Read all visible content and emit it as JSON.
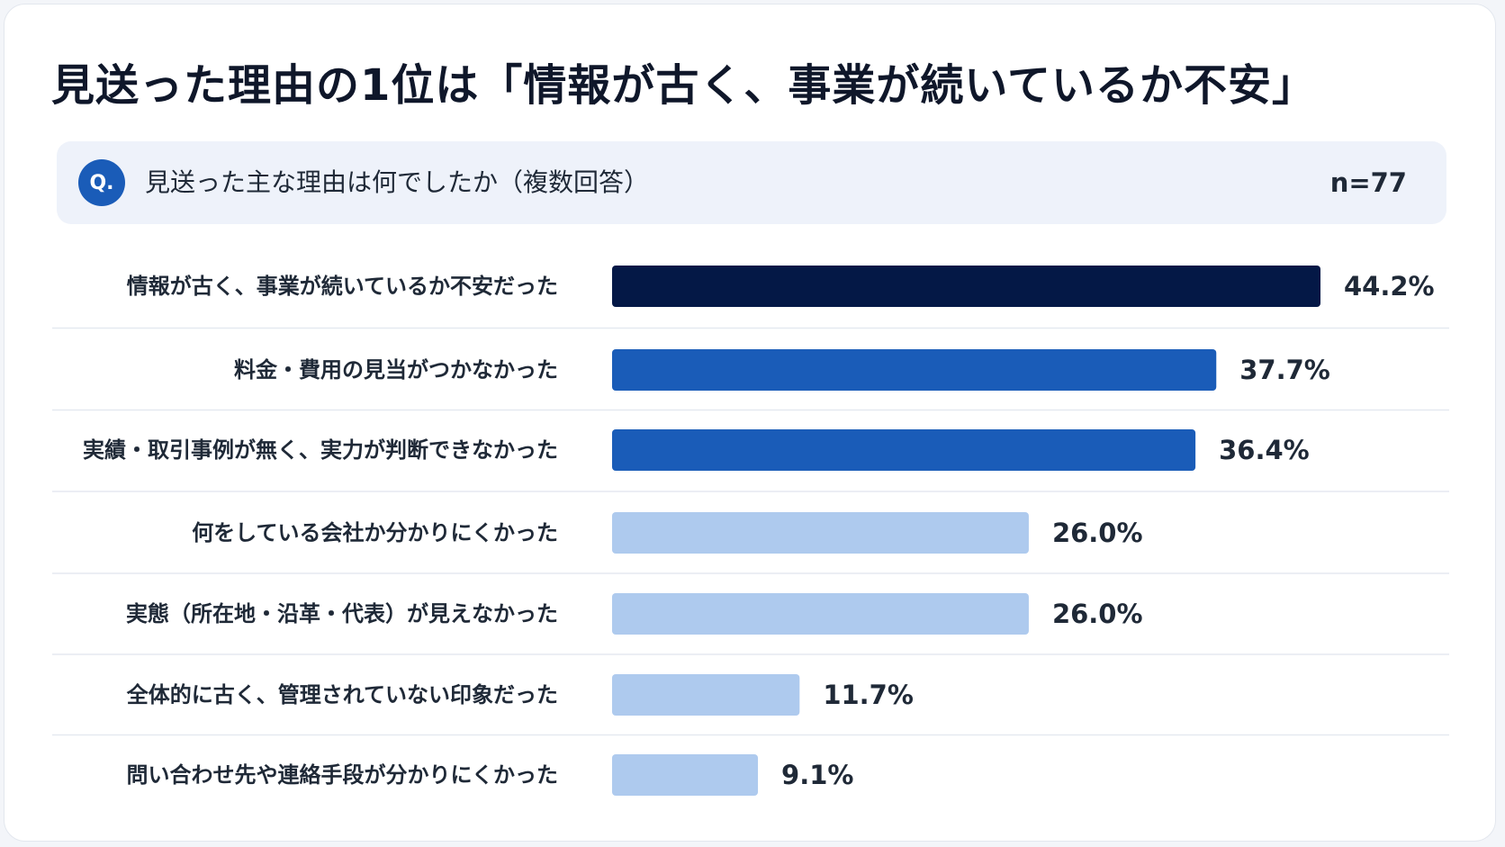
{
  "title": "見送った理由の1位は「情報が古く、事業が続いているか不安」",
  "question": {
    "badge": "Q.",
    "text": "見送った主な理由は何でしたか（複数回答）",
    "sample": "n=77"
  },
  "colors": {
    "top": "#041846",
    "mid": "#1a5cb8",
    "low": "#aecaee",
    "divider": "#e5e9f0"
  },
  "chart_data": {
    "type": "bar",
    "orientation": "horizontal",
    "categories": [
      "情報が古く、事業が続いているか不安だった",
      "料金・費用の見当がつかなかった",
      "実績・取引事例が無く、実力が判断できなかった",
      "何をしている会社か分かりにくかった",
      "実態（所在地・沿革・代表）が見えなかった",
      "全体的に古く、管理されていない印象だった",
      "問い合わせ先や連絡手段が分かりにくかった"
    ],
    "values": [
      44.2,
      37.7,
      36.4,
      26.0,
      26.0,
      11.7,
      9.1
    ],
    "value_labels": [
      "44.2%",
      "37.7%",
      "36.4%",
      "26.0%",
      "26.0%",
      "11.7%",
      "9.1%"
    ],
    "tiers": [
      "top",
      "mid",
      "mid",
      "low",
      "low",
      "low",
      "low"
    ],
    "unit": "%",
    "grid": false,
    "legend": "none"
  }
}
